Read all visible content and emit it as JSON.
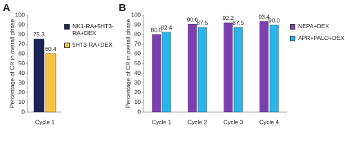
{
  "chart_data": [
    {
      "type": "bar",
      "panel_label": "A",
      "y_label": "Percentage of CR in overall phase",
      "categories": [
        "Cycle 1"
      ],
      "series": [
        {
          "name": "NK1-RA+5HT3-RA+DEX",
          "color": "#1b2455",
          "values": [
            75.3
          ]
        },
        {
          "name": "5HT3-RA+DEX",
          "color": "#f6c344",
          "values": [
            60.4
          ]
        }
      ],
      "ylim": [
        0,
        100
      ],
      "yticks": [
        0,
        10,
        20,
        30,
        40,
        50,
        60,
        70,
        80,
        90,
        100
      ]
    },
    {
      "type": "bar",
      "panel_label": "B",
      "y_label": "Percentage of CR in overall phase",
      "categories": [
        "Cycle 1",
        "Cycle 2",
        "Cycle 3",
        "Cycle 4"
      ],
      "series": [
        {
          "name": "NEPA+DEX",
          "color": "#7b3fb0",
          "values": [
            80.0,
            90.6,
            92.2,
            93.4
          ],
          "value_labels": [
            "80.0",
            "90.6",
            "92.2",
            "93.4"
          ]
        },
        {
          "name": "APR+PALO+DEX",
          "color": "#2cb4ec",
          "values": [
            82.4,
            87.5,
            87.5,
            90.0
          ],
          "value_labels": [
            "82.4",
            "87.5",
            "87.5",
            "90.0"
          ]
        }
      ],
      "ylim": [
        0,
        100
      ],
      "yticks": [
        0,
        10,
        20,
        30,
        40,
        50,
        60,
        70,
        80,
        90,
        100
      ]
    }
  ]
}
